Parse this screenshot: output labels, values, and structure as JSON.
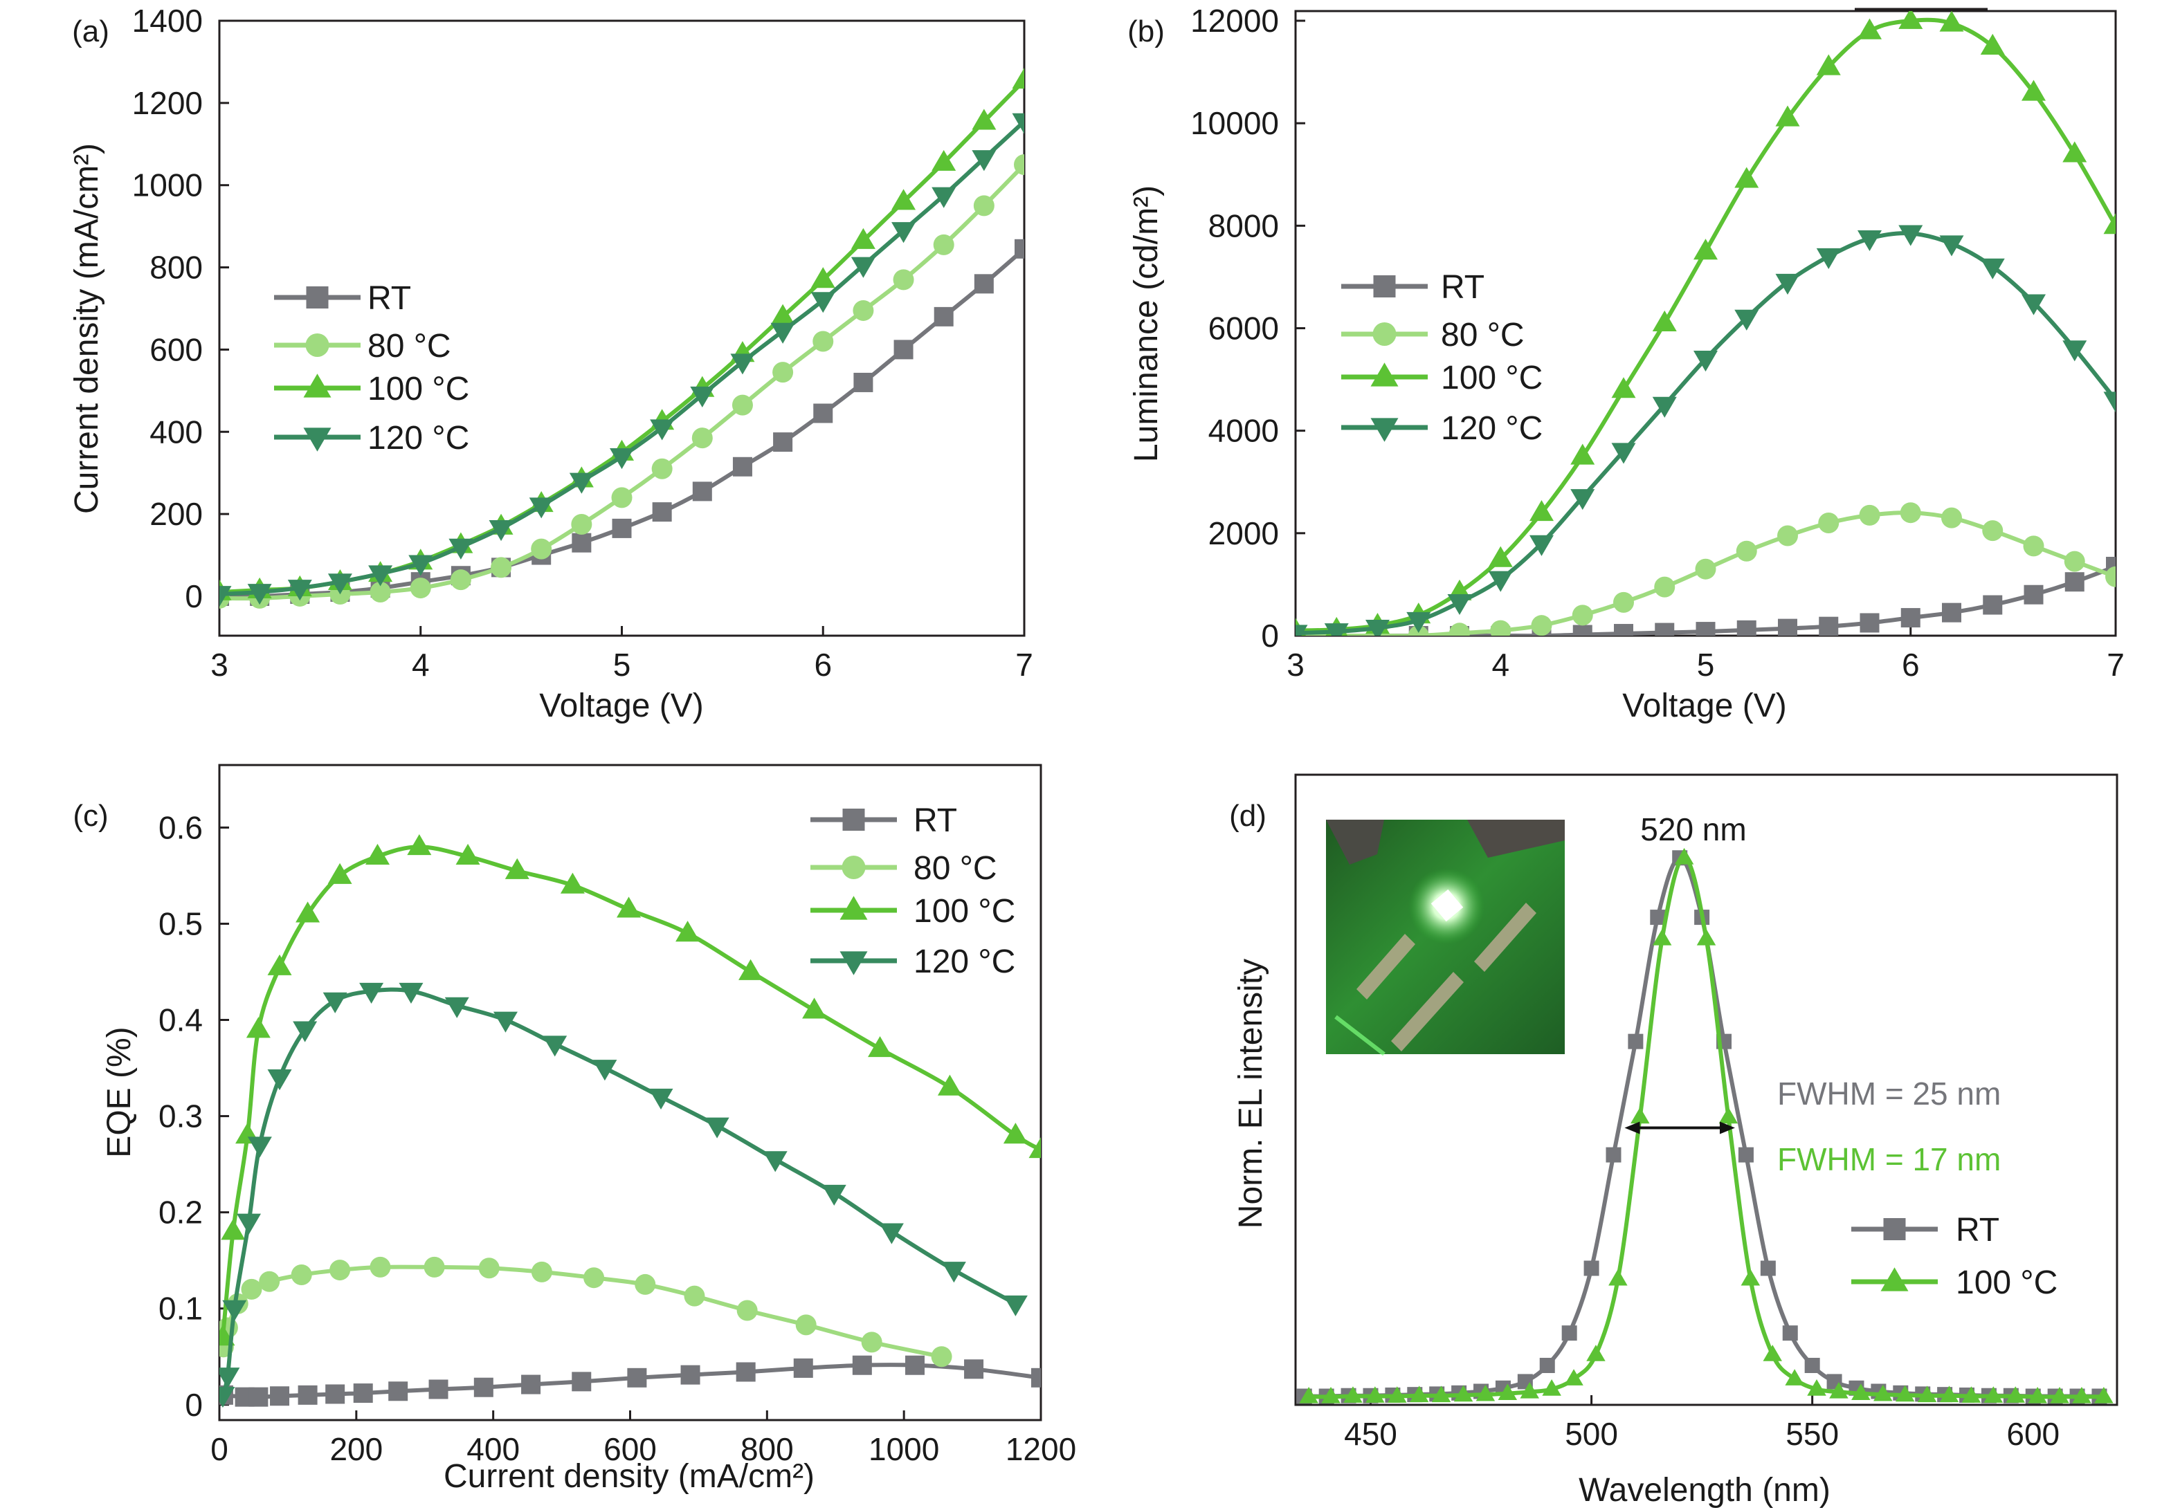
{
  "colors": {
    "RT": "#75767b",
    "80C": "#9fdb7f",
    "100C": "#5cc234",
    "120C": "#378a5f",
    "axis": "#231f20"
  },
  "chart_data": [
    {
      "panel": "(a)",
      "type": "line",
      "xlabel": "Voltage (V)",
      "ylabel": "Current density (mA/cm²)",
      "xlim": [
        3,
        7
      ],
      "ylim": [
        -96,
        1400
      ],
      "xticks": [
        3,
        4,
        5,
        6,
        7
      ],
      "yticks": [
        0,
        200,
        400,
        600,
        800,
        1000,
        1200,
        1400
      ],
      "legend": "center-left",
      "x": [
        3.0,
        3.2,
        3.4,
        3.6,
        3.8,
        4.0,
        4.2,
        4.4,
        4.6,
        4.8,
        5.0,
        5.2,
        5.4,
        5.6,
        5.8,
        6.0,
        6.2,
        6.4,
        6.6,
        6.8,
        7.0
      ],
      "series": [
        {
          "name": "RT",
          "marker": "square",
          "color": "#75767b",
          "y": [
            0,
            0,
            5,
            10,
            20,
            35,
            50,
            70,
            100,
            130,
            165,
            205,
            255,
            315,
            375,
            445,
            520,
            600,
            680,
            760,
            845
          ]
        },
        {
          "name": "80 °C",
          "marker": "circle",
          "color": "#9fdb7f",
          "y": [
            -5,
            -5,
            0,
            5,
            10,
            20,
            40,
            70,
            115,
            175,
            240,
            310,
            385,
            465,
            545,
            620,
            695,
            770,
            855,
            950,
            1050
          ]
        },
        {
          "name": "100 °C",
          "marker": "triangle-up",
          "color": "#5cc234",
          "y": [
            10,
            15,
            20,
            35,
            55,
            85,
            125,
            170,
            225,
            285,
            350,
            425,
            505,
            590,
            680,
            770,
            865,
            960,
            1055,
            1155,
            1255
          ]
        },
        {
          "name": "120 °C",
          "marker": "triangle-down",
          "color": "#378a5f",
          "y": [
            5,
            10,
            20,
            35,
            55,
            80,
            120,
            165,
            220,
            280,
            340,
            410,
            490,
            570,
            645,
            720,
            805,
            890,
            975,
            1065,
            1155
          ]
        }
      ]
    },
    {
      "panel": "(b)",
      "type": "line",
      "xlabel": "Voltage (V)",
      "ylabel": "Luminance (cd/m²)",
      "xlim": [
        3,
        7
      ],
      "ylim": [
        0,
        12189
      ],
      "xticks": [
        3,
        4,
        5,
        6,
        7
      ],
      "yticks": [
        0,
        2000,
        4000,
        6000,
        8000,
        10000,
        12000
      ],
      "legend": "center-left",
      "x": [
        3.0,
        3.2,
        3.4,
        3.6,
        3.8,
        4.0,
        4.2,
        4.4,
        4.6,
        4.8,
        5.0,
        5.2,
        5.4,
        5.6,
        5.8,
        6.0,
        6.2,
        6.4,
        6.6,
        6.8,
        7.0
      ],
      "series": [
        {
          "name": "RT",
          "marker": "square",
          "color": "#75767b",
          "y": [
            0,
            0,
            0,
            0,
            0,
            0,
            0,
            20,
            40,
            60,
            80,
            110,
            140,
            180,
            250,
            350,
            450,
            600,
            800,
            1050,
            1350
          ]
        },
        {
          "name": "80 °C",
          "marker": "circle",
          "color": "#9fdb7f",
          "y": [
            0,
            0,
            0,
            0,
            50,
            100,
            200,
            400,
            650,
            950,
            1300,
            1650,
            1950,
            2200,
            2350,
            2400,
            2300,
            2050,
            1750,
            1450,
            1150
          ]
        },
        {
          "name": "100 °C",
          "marker": "triangle-up",
          "color": "#5cc234",
          "y": [
            100,
            120,
            200,
            400,
            850,
            1500,
            2400,
            3500,
            4800,
            6100,
            7500,
            8900,
            10100,
            11100,
            11800,
            12000,
            11950,
            11500,
            10600,
            9400,
            8000
          ]
        },
        {
          "name": "120 °C",
          "marker": "triangle-down",
          "color": "#378a5f",
          "y": [
            50,
            80,
            150,
            300,
            650,
            1100,
            1800,
            2700,
            3600,
            4500,
            5400,
            6200,
            6900,
            7400,
            7750,
            7850,
            7650,
            7200,
            6500,
            5600,
            4600
          ]
        }
      ]
    },
    {
      "panel": "(c)",
      "type": "line",
      "xlabel": "Current density (mA/cm²)",
      "ylabel": "EQE (%)",
      "xlim": [
        0,
        1200
      ],
      "ylim": [
        -0.016,
        0.665
      ],
      "xticks": [
        0,
        200,
        400,
        600,
        800,
        1000,
        1200
      ],
      "yticks": [
        0,
        0.1,
        0.2,
        0.3,
        0.4,
        0.5,
        0.6
      ],
      "legend": "top-right",
      "series": [
        {
          "name": "RT",
          "marker": "square",
          "color": "#75767b",
          "x": [
            6,
            37,
            57,
            88,
            129,
            169,
            210,
            261,
            320,
            386,
            455,
            529,
            610,
            688,
            769,
            853,
            939,
            1016,
            1102,
            1200
          ],
          "y": [
            0.01,
            0.008,
            0.008,
            0.009,
            0.01,
            0.011,
            0.012,
            0.014,
            0.016,
            0.018,
            0.021,
            0.024,
            0.028,
            0.031,
            0.034,
            0.038,
            0.041,
            0.041,
            0.037,
            0.028
          ]
        },
        {
          "name": "80 °C",
          "marker": "circle",
          "color": "#9fdb7f",
          "x": [
            6,
            12,
            27,
            47,
            73,
            120,
            176,
            235,
            314,
            394,
            471,
            547,
            622,
            694,
            771,
            857,
            953,
            1055
          ],
          "y": [
            0.06,
            0.08,
            0.105,
            0.12,
            0.128,
            0.135,
            0.14,
            0.143,
            0.143,
            0.142,
            0.138,
            0.132,
            0.125,
            0.113,
            0.098,
            0.083,
            0.065,
            0.05
          ]
        },
        {
          "name": "100 °C",
          "marker": "triangle-up",
          "color": "#5cc234",
          "x": [
            5,
            20,
            41,
            57,
            88,
            129,
            176,
            231,
            292,
            363,
            435,
            516,
            598,
            684,
            776,
            869,
            965,
            1067,
            1163,
            1200
          ],
          "y": [
            0.07,
            0.18,
            0.28,
            0.39,
            0.455,
            0.51,
            0.55,
            0.57,
            0.58,
            0.57,
            0.555,
            0.54,
            0.515,
            0.49,
            0.45,
            0.41,
            0.37,
            0.33,
            0.28,
            0.265
          ]
        },
        {
          "name": "120 °C",
          "marker": "triangle-down",
          "color": "#378a5f",
          "x": [
            5,
            12,
            22,
            43,
            59,
            88,
            125,
            169,
            222,
            280,
            347,
            418,
            490,
            563,
            645,
            727,
            812,
            898,
            982,
            1073,
            1163
          ],
          "y": [
            0.01,
            0.03,
            0.1,
            0.19,
            0.27,
            0.34,
            0.39,
            0.42,
            0.43,
            0.43,
            0.415,
            0.4,
            0.375,
            0.35,
            0.32,
            0.29,
            0.255,
            0.22,
            0.18,
            0.14,
            0.105
          ]
        }
      ]
    },
    {
      "panel": "(d)",
      "type": "line",
      "xlabel": "Wavelength (nm)",
      "ylabel": "Norm. EL intensity",
      "xlim": [
        433,
        619
      ],
      "ylim": [
        -0.013,
        1.154
      ],
      "xticks": [
        450,
        500,
        550,
        600
      ],
      "yticks": [],
      "legend": "bottom-right",
      "series": [
        {
          "name": "RT",
          "marker": "square",
          "color": "#75767b",
          "x": [
            435,
            440,
            445,
            450,
            455,
            460,
            465,
            470,
            475,
            480,
            485,
            490,
            495,
            500,
            505,
            510,
            515,
            520,
            525,
            530,
            535,
            540,
            545,
            550,
            555,
            560,
            565,
            570,
            575,
            580,
            585,
            590,
            595,
            600,
            605,
            610,
            615
          ],
          "y": [
            0.003,
            0.003,
            0.004,
            0.004,
            0.005,
            0.006,
            0.007,
            0.009,
            0.012,
            0.018,
            0.03,
            0.06,
            0.12,
            0.24,
            0.45,
            0.66,
            0.89,
            1.0,
            0.89,
            0.66,
            0.45,
            0.24,
            0.12,
            0.06,
            0.03,
            0.018,
            0.012,
            0.009,
            0.007,
            0.006,
            0.005,
            0.004,
            0.004,
            0.003,
            0.003,
            0.003,
            0.003
          ]
        },
        {
          "name": "100 °C",
          "marker": "triangle-up",
          "color": "#5cc234",
          "x": [
            436,
            441,
            446,
            451,
            456,
            461,
            466,
            471,
            476,
            481,
            486,
            491,
            496,
            501,
            506,
            511,
            516,
            521,
            526,
            531,
            536,
            541,
            546,
            551,
            556,
            561,
            566,
            571,
            576,
            581,
            586,
            591,
            596,
            601,
            606,
            611,
            616
          ],
          "y": [
            0.002,
            0.002,
            0.003,
            0.003,
            0.003,
            0.004,
            0.004,
            0.005,
            0.006,
            0.008,
            0.011,
            0.016,
            0.035,
            0.08,
            0.22,
            0.52,
            0.85,
            1.0,
            0.85,
            0.52,
            0.22,
            0.08,
            0.035,
            0.016,
            0.011,
            0.008,
            0.006,
            0.005,
            0.004,
            0.004,
            0.003,
            0.003,
            0.003,
            0.002,
            0.002,
            0.002,
            0.002
          ]
        }
      ],
      "annotations": {
        "peak_label": "520 nm",
        "fwhm_rt": "FWHM = 25 nm",
        "fwhm_100": "FWHM = 17 nm",
        "fwhm_arrow_nm": [
          507.5,
          532.5
        ],
        "fwhm_arrow_level": 0.5,
        "inset": "device-photo"
      }
    }
  ]
}
